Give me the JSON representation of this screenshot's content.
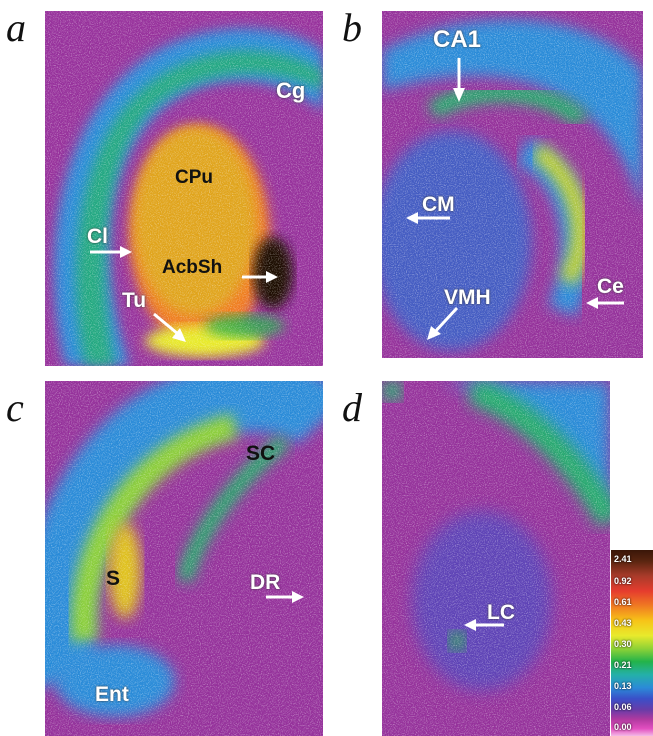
{
  "panels": [
    {
      "letter": "a",
      "labels": {
        "cg": "Cg",
        "cpu": "CPu",
        "cl": "Cl",
        "acbsh": "AcbSh",
        "tu": "Tu"
      }
    },
    {
      "letter": "b",
      "labels": {
        "ca1": "CA1",
        "cm": "CM",
        "vmh": "VMH",
        "ce": "Ce"
      }
    },
    {
      "letter": "c",
      "labels": {
        "sc": "SC",
        "s": "S",
        "dr": "DR",
        "ent": "Ent"
      }
    },
    {
      "letter": "d",
      "labels": {
        "lc": "LC"
      }
    }
  ],
  "scale": {
    "ticks": [
      "2.41",
      "0.92",
      "0.61",
      "0.43",
      "0.30",
      "0.21",
      "0.13",
      "0.06",
      "0.00"
    ]
  },
  "colors": {
    "background_tissue": "#8a2f9a",
    "low": "#e24ec0",
    "mid_blue": "#2b6bd0",
    "mid_green": "#24b06a",
    "high_yellow": "#e0c21c",
    "high_orange": "#e08a1a",
    "peak_black": "#1a0a04"
  }
}
